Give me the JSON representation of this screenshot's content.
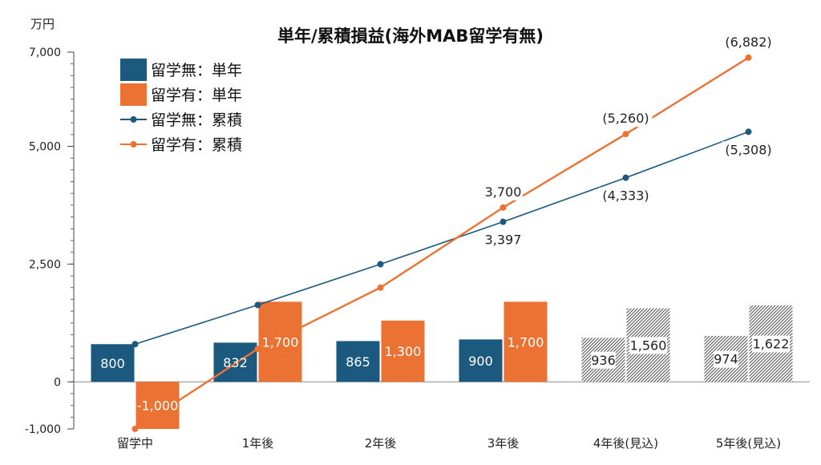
{
  "chart_data": {
    "type": "bar",
    "title": "単年/累積損益(海外MAB留学有無)",
    "ylabel": "万円",
    "ylim": [
      -1000,
      7000
    ],
    "yticks": [
      -1000,
      0,
      2500,
      5000,
      7000
    ],
    "ytick_labels": [
      "-1,000",
      "0",
      "2,500",
      "5,000",
      "7,000"
    ],
    "categories": [
      "留学中",
      "1年後",
      "2年後",
      "3年後",
      "4年後(見込)",
      "5年後(見込)"
    ],
    "colors": {
      "blue": "#1b5a7e",
      "orange": "#ec7234"
    },
    "legend": [
      {
        "label": "留学無：単年",
        "kind": "bar",
        "color": "#1b5a7e"
      },
      {
        "label": "留学有：単年",
        "kind": "bar",
        "color": "#ec7234"
      },
      {
        "label": "留学無：累積",
        "kind": "line",
        "color": "#1b5a7e"
      },
      {
        "label": "留学有：累積",
        "kind": "line",
        "color": "#ec7234"
      }
    ],
    "series": [
      {
        "name": "留学無：単年",
        "type": "bar",
        "values": [
          800,
          832,
          865,
          900,
          936,
          974
        ],
        "labels": [
          "800",
          "832",
          "865",
          "900",
          "936",
          "974"
        ],
        "estimated": [
          false,
          false,
          false,
          false,
          true,
          true
        ]
      },
      {
        "name": "留学有：単年",
        "type": "bar",
        "values": [
          -1000,
          1700,
          1300,
          1700,
          1560,
          1622
        ],
        "labels": [
          "-1,000",
          "1,700",
          "1,300",
          "1,700",
          "1,560",
          "1,622"
        ],
        "estimated": [
          false,
          false,
          false,
          false,
          true,
          true
        ]
      },
      {
        "name": "留学無：累積",
        "type": "line",
        "values": [
          800,
          1632,
          2497,
          3397,
          4333,
          5308
        ],
        "labels": [
          "",
          "",
          "",
          "3,397",
          "(4,333)",
          "(5,308)"
        ]
      },
      {
        "name": "留学有：累積",
        "type": "line",
        "values": [
          -1000,
          700,
          2000,
          3700,
          5260,
          6882
        ],
        "labels": [
          "",
          "",
          "",
          "3,700",
          "(5,260)",
          "(6,882)"
        ]
      }
    ]
  }
}
